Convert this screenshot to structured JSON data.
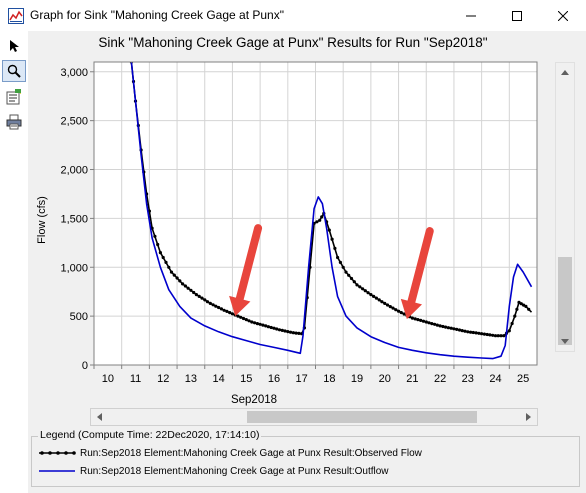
{
  "window": {
    "title": "Graph for Sink \"Mahoning Creek Gage at Punx\"",
    "controls": [
      "minimize-icon",
      "maximize-icon",
      "close-icon"
    ]
  },
  "toolbar": {
    "tools": [
      {
        "name": "pointer-tool",
        "icon": "arrow-pointer-icon",
        "active": false
      },
      {
        "name": "zoom-tool",
        "icon": "magnifier-icon",
        "active": true
      },
      {
        "name": "properties-tool",
        "icon": "properties-icon",
        "active": false
      },
      {
        "name": "print-tool",
        "icon": "printer-icon",
        "active": false
      }
    ]
  },
  "chart": {
    "title": "Sink \"Mahoning Creek Gage at Punx\" Results for Run \"Sep2018\"",
    "ylabel": "Flow (cfs)",
    "xlabel": "Sep2018"
  },
  "chart_data": {
    "type": "line",
    "title": "Sink \"Mahoning Creek Gage at Punx\" Results for Run \"Sep2018\"",
    "xlabel": "Sep2018",
    "ylabel": "Flow (cfs)",
    "xlim": [
      10,
      26
    ],
    "ylim": [
      0,
      3100
    ],
    "x_ticks": [
      "10",
      "11",
      "12",
      "13",
      "14",
      "15",
      "16",
      "17",
      "18",
      "19",
      "20",
      "21",
      "22",
      "23",
      "24",
      "25"
    ],
    "y_ticks": [
      "0",
      "500",
      "1,000",
      "1,500",
      "2,000",
      "2,500",
      "3,000"
    ],
    "grid": true,
    "series": [
      {
        "name": "Run:Sep2018 Element:Mahoning Creek Gage at Punx Result:Observed Flow",
        "color": "#000000",
        "marker": "dot",
        "points": [
          [
            11.35,
            3100
          ],
          [
            11.5,
            2700
          ],
          [
            11.7,
            2200
          ],
          [
            11.9,
            1750
          ],
          [
            12.1,
            1400
          ],
          [
            12.4,
            1150
          ],
          [
            12.8,
            950
          ],
          [
            13.2,
            830
          ],
          [
            13.7,
            720
          ],
          [
            14.2,
            630
          ],
          [
            14.7,
            560
          ],
          [
            15.2,
            500
          ],
          [
            15.7,
            440
          ],
          [
            16.2,
            400
          ],
          [
            16.7,
            360
          ],
          [
            17.2,
            330
          ],
          [
            17.5,
            320
          ],
          [
            17.6,
            380
          ],
          [
            17.8,
            1000
          ],
          [
            17.95,
            1450
          ],
          [
            18.15,
            1480
          ],
          [
            18.3,
            1550
          ],
          [
            18.5,
            1380
          ],
          [
            18.8,
            1100
          ],
          [
            19.1,
            950
          ],
          [
            19.5,
            820
          ],
          [
            20,
            720
          ],
          [
            20.5,
            630
          ],
          [
            21,
            550
          ],
          [
            21.5,
            480
          ],
          [
            22,
            440
          ],
          [
            22.5,
            400
          ],
          [
            23,
            370
          ],
          [
            23.5,
            340
          ],
          [
            24,
            320
          ],
          [
            24.5,
            300
          ],
          [
            24.8,
            300
          ],
          [
            25.0,
            350
          ],
          [
            25.2,
            500
          ],
          [
            25.35,
            640
          ],
          [
            25.6,
            600
          ],
          [
            25.8,
            540
          ]
        ]
      },
      {
        "name": "Run:Sep2018 Element:Mahoning Creek Gage at Punx Result:Outflow",
        "color": "#0000cc",
        "marker": "none",
        "points": [
          [
            11.35,
            3100
          ],
          [
            11.5,
            2700
          ],
          [
            11.7,
            2150
          ],
          [
            11.9,
            1650
          ],
          [
            12.1,
            1300
          ],
          [
            12.4,
            1000
          ],
          [
            12.7,
            770
          ],
          [
            13.1,
            600
          ],
          [
            13.5,
            480
          ],
          [
            14,
            400
          ],
          [
            14.5,
            340
          ],
          [
            15,
            290
          ],
          [
            15.5,
            250
          ],
          [
            16,
            210
          ],
          [
            16.5,
            180
          ],
          [
            17,
            150
          ],
          [
            17.3,
            130
          ],
          [
            17.45,
            120
          ],
          [
            17.55,
            300
          ],
          [
            17.75,
            1000
          ],
          [
            17.95,
            1600
          ],
          [
            18.1,
            1720
          ],
          [
            18.25,
            1650
          ],
          [
            18.4,
            1400
          ],
          [
            18.6,
            1000
          ],
          [
            18.8,
            700
          ],
          [
            19.1,
            500
          ],
          [
            19.5,
            380
          ],
          [
            20,
            290
          ],
          [
            20.5,
            230
          ],
          [
            21,
            180
          ],
          [
            21.5,
            150
          ],
          [
            22,
            125
          ],
          [
            22.5,
            105
          ],
          [
            23,
            90
          ],
          [
            23.5,
            80
          ],
          [
            24,
            72
          ],
          [
            24.4,
            65
          ],
          [
            24.7,
            90
          ],
          [
            24.85,
            200
          ],
          [
            25.0,
            600
          ],
          [
            25.15,
            900
          ],
          [
            25.3,
            1030
          ],
          [
            25.5,
            950
          ],
          [
            25.8,
            800
          ]
        ]
      }
    ],
    "annotations": [
      {
        "type": "red-arrow",
        "points_to": [
          15.1,
          500
        ]
      },
      {
        "type": "red-arrow",
        "points_to": [
          21.3,
          470
        ]
      }
    ]
  },
  "legend": {
    "title": "Legend (Compute Time: 22Dec2020, 17:14:10)",
    "items": [
      {
        "label": "Run:Sep2018 Element:Mahoning Creek Gage at Punx Result:Observed Flow",
        "color": "#000000"
      },
      {
        "label": "Run:Sep2018 Element:Mahoning Creek Gage at Punx Result:Outflow",
        "color": "#0000cc"
      }
    ]
  }
}
